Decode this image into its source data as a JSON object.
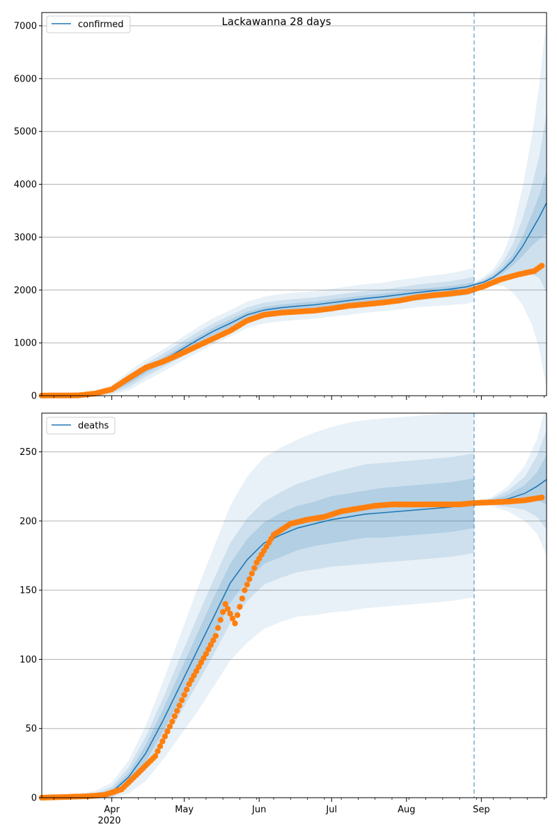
{
  "colors": {
    "model_line": "#1f77b4",
    "observed_points": "#ff7f0e",
    "band": "#1f77b4",
    "grid": "#b0b0b0",
    "forecast_marker": "#1f77b4"
  },
  "chart_data": [
    {
      "type": "line",
      "title": "Lackawanna 28 days",
      "legend": [
        "confirmed"
      ],
      "legend_position": "top-left",
      "grid": "y-major",
      "x_axis": {
        "type": "date",
        "range": [
          "2020-03-03",
          "2020-09-28"
        ],
        "show_tick_labels": false,
        "forecast_start": "2020-08-29"
      },
      "y_axis": {
        "range": [
          0,
          7250
        ],
        "ticks": [
          0,
          1000,
          2000,
          3000,
          4000,
          5000,
          6000,
          7000
        ]
      },
      "model_series": {
        "name": "confirmed",
        "x": [
          "2020-03-03",
          "2020-03-18",
          "2020-03-25",
          "2020-04-01",
          "2020-04-08",
          "2020-04-15",
          "2020-04-22",
          "2020-04-29",
          "2020-05-06",
          "2020-05-13",
          "2020-05-20",
          "2020-05-27",
          "2020-06-03",
          "2020-06-10",
          "2020-06-17",
          "2020-06-24",
          "2020-07-01",
          "2020-07-08",
          "2020-07-15",
          "2020-07-22",
          "2020-07-29",
          "2020-08-05",
          "2020-08-12",
          "2020-08-19",
          "2020-08-26",
          "2020-08-29",
          "2020-09-02",
          "2020-09-06",
          "2020-09-10",
          "2020-09-14",
          "2020-09-18",
          "2020-09-22",
          "2020-09-25",
          "2020-09-28"
        ],
        "y": [
          5,
          10,
          30,
          110,
          280,
          480,
          660,
          850,
          1040,
          1220,
          1370,
          1530,
          1620,
          1665,
          1695,
          1720,
          1760,
          1800,
          1840,
          1870,
          1910,
          1950,
          1985,
          2015,
          2060,
          2100,
          2150,
          2240,
          2380,
          2560,
          2820,
          3140,
          3380,
          3650
        ],
        "band_half_width": [
          [
            1,
            2,
            10,
            30,
            60,
            60,
            60,
            60,
            65,
            70,
            70,
            60,
            60,
            60,
            60,
            60,
            60,
            60,
            60,
            60,
            60,
            60,
            60,
            60,
            60,
            60,
            30,
            40,
            60,
            100,
            180,
            300,
            420,
            600
          ],
          [
            2,
            5,
            20,
            60,
            120,
            120,
            130,
            140,
            150,
            150,
            150,
            140,
            140,
            140,
            140,
            140,
            140,
            140,
            140,
            140,
            140,
            150,
            150,
            150,
            160,
            160,
            60,
            90,
            160,
            300,
            520,
            850,
            1150,
            1700
          ],
          [
            3,
            8,
            30,
            90,
            180,
            200,
            210,
            220,
            240,
            250,
            250,
            250,
            250,
            260,
            260,
            260,
            260,
            270,
            270,
            270,
            280,
            280,
            290,
            300,
            320,
            320,
            100,
            160,
            300,
            600,
            1100,
            1800,
            2500,
            3500
          ]
        ]
      },
      "observed": {
        "start_date": "2020-03-03",
        "end_date": "2020-09-26",
        "x_nodes": [
          "2020-03-03",
          "2020-03-18",
          "2020-03-25",
          "2020-04-01",
          "2020-04-08",
          "2020-04-15",
          "2020-04-22",
          "2020-04-29",
          "2020-05-06",
          "2020-05-13",
          "2020-05-20",
          "2020-05-27",
          "2020-06-03",
          "2020-06-10",
          "2020-06-17",
          "2020-06-24",
          "2020-07-01",
          "2020-07-08",
          "2020-07-15",
          "2020-07-22",
          "2020-07-29",
          "2020-08-05",
          "2020-08-12",
          "2020-08-19",
          "2020-08-26",
          "2020-09-02",
          "2020-09-09",
          "2020-09-16",
          "2020-09-23",
          "2020-09-26"
        ],
        "y_nodes": [
          3,
          5,
          40,
          120,
          330,
          530,
          640,
          780,
          930,
          1080,
          1230,
          1420,
          1530,
          1570,
          1590,
          1610,
          1650,
          1700,
          1730,
          1760,
          1800,
          1860,
          1900,
          1930,
          1970,
          2070,
          2200,
          2290,
          2360,
          2460
        ]
      }
    },
    {
      "type": "line",
      "title": "",
      "legend": [
        "deaths"
      ],
      "legend_position": "top-left",
      "grid": "y-major",
      "x_axis": {
        "type": "date",
        "range": [
          "2020-03-03",
          "2020-09-28"
        ],
        "tick_labels": [
          "Apr",
          "May",
          "Jun",
          "Jul",
          "Aug",
          "Sep"
        ],
        "tick_dates": [
          "2020-04-01",
          "2020-05-01",
          "2020-06-01",
          "2020-07-01",
          "2020-08-01",
          "2020-09-01"
        ],
        "year_label": "2020",
        "forecast_start": "2020-08-29"
      },
      "y_axis": {
        "range": [
          0,
          278
        ],
        "ticks": [
          0,
          50,
          100,
          150,
          200,
          250
        ]
      },
      "model_series": {
        "name": "deaths",
        "x": [
          "2020-03-03",
          "2020-03-18",
          "2020-03-25",
          "2020-04-01",
          "2020-04-08",
          "2020-04-15",
          "2020-04-22",
          "2020-04-29",
          "2020-05-06",
          "2020-05-13",
          "2020-05-20",
          "2020-05-27",
          "2020-06-03",
          "2020-06-10",
          "2020-06-17",
          "2020-06-24",
          "2020-07-01",
          "2020-07-08",
          "2020-07-15",
          "2020-07-22",
          "2020-07-29",
          "2020-08-05",
          "2020-08-12",
          "2020-08-19",
          "2020-08-26",
          "2020-08-29",
          "2020-09-05",
          "2020-09-12",
          "2020-09-19",
          "2020-09-24",
          "2020-09-28"
        ],
        "y": [
          0,
          0.5,
          1,
          4,
          15,
          32,
          55,
          80,
          105,
          130,
          155,
          172,
          184,
          190,
          195,
          198,
          201,
          203,
          205,
          206,
          207,
          208,
          209,
          210,
          212,
          213,
          214,
          216,
          220,
          225,
          230
        ],
        "band_half_width": [
          [
            0.3,
            0.5,
            1,
            2,
            3,
            6,
            8,
            10,
            12,
            14,
            14,
            15,
            15,
            16,
            16,
            16,
            17,
            17,
            17,
            18,
            18,
            18,
            18,
            18,
            18,
            18,
            1,
            3,
            6,
            10,
            18
          ],
          [
            1,
            1,
            2,
            4,
            7,
            12,
            16,
            20,
            24,
            27,
            29,
            30,
            30,
            31,
            32,
            33,
            34,
            35,
            36,
            36,
            36,
            36,
            36,
            36,
            36,
            36,
            2,
            6,
            12,
            22,
            36
          ],
          [
            2,
            2,
            4,
            7,
            12,
            20,
            28,
            36,
            44,
            50,
            56,
            60,
            62,
            63,
            64,
            66,
            67,
            68,
            68,
            68,
            68,
            68,
            68,
            68,
            68,
            68,
            3,
            9,
            20,
            34,
            55
          ]
        ]
      },
      "observed": {
        "start_date": "2020-03-03",
        "end_date": "2020-09-26",
        "x_nodes": [
          "2020-03-03",
          "2020-03-22",
          "2020-03-29",
          "2020-04-05",
          "2020-04-12",
          "2020-04-19",
          "2020-04-26",
          "2020-05-03",
          "2020-05-10",
          "2020-05-14",
          "2020-05-18",
          "2020-05-22",
          "2020-05-26",
          "2020-05-31",
          "2020-06-07",
          "2020-06-14",
          "2020-06-21",
          "2020-06-28",
          "2020-07-05",
          "2020-07-12",
          "2020-07-19",
          "2020-07-26",
          "2020-08-09",
          "2020-08-23",
          "2020-08-29",
          "2020-09-12",
          "2020-09-19",
          "2020-09-26"
        ],
        "y_nodes": [
          0,
          1,
          2,
          6,
          18,
          30,
          55,
          82,
          104,
          117,
          140,
          126,
          150,
          170,
          190,
          198,
          201,
          203,
          207,
          209,
          211,
          212,
          212,
          212,
          213,
          214,
          215,
          217
        ]
      }
    }
  ]
}
